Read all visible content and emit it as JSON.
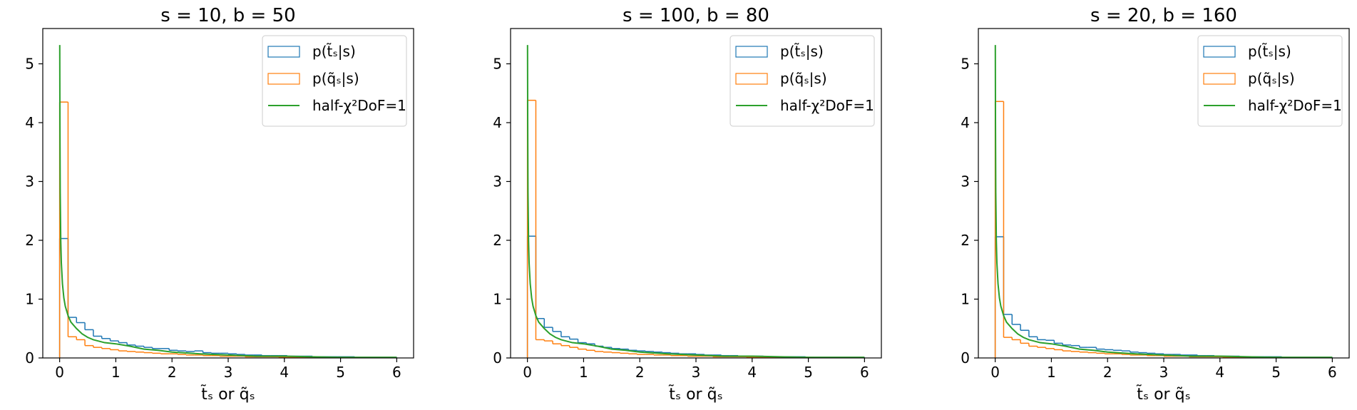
{
  "chart_data": [
    {
      "type": "histogram",
      "title": "s = 10, b = 50",
      "xlabel": "t̃ₛ or q̃ₛ",
      "ylabel": "",
      "xlim": [
        -0.3,
        6.3
      ],
      "ylim": [
        0,
        5.6
      ],
      "xticks": [
        0,
        1,
        2,
        3,
        4,
        5,
        6
      ],
      "yticks": [
        0,
        1,
        2,
        3,
        4,
        5
      ],
      "xtick_labels": [
        "0",
        "1",
        "2",
        "3",
        "4",
        "5",
        "6"
      ],
      "ytick_labels": [
        "0",
        "1",
        "2",
        "3",
        "4",
        "5"
      ],
      "legend_position": "upper right",
      "grid": false,
      "series": [
        {
          "name": "p(t̃ₛ|s)",
          "kind": "step-histogram",
          "color": "#1f77b4",
          "bin_edges": [
            0,
            0.15,
            0.3,
            0.45,
            0.6,
            0.75,
            0.9,
            1.05,
            1.2,
            1.35,
            1.5,
            1.65,
            1.8,
            1.95,
            2.1,
            2.25,
            2.4,
            2.55,
            2.7,
            2.85,
            3.0,
            3.15,
            3.3,
            3.45,
            3.6,
            3.75,
            3.9,
            4.05,
            4.2,
            4.35,
            4.5,
            4.65,
            4.8,
            4.95,
            5.1,
            5.25,
            5.4,
            5.55,
            5.7,
            5.85,
            6.0
          ],
          "values": [
            2.03,
            0.69,
            0.6,
            0.48,
            0.37,
            0.33,
            0.29,
            0.26,
            0.22,
            0.2,
            0.18,
            0.16,
            0.16,
            0.13,
            0.12,
            0.11,
            0.12,
            0.09,
            0.08,
            0.08,
            0.07,
            0.06,
            0.05,
            0.05,
            0.04,
            0.04,
            0.04,
            0.03,
            0.03,
            0.03,
            0.02,
            0.02,
            0.02,
            0.02,
            0.02,
            0.01,
            0.01,
            0.01,
            0.01,
            0.01
          ]
        },
        {
          "name": "p(q̃ₛ|s)",
          "kind": "step-histogram",
          "color": "#ff7f0e",
          "bin_edges": [
            0,
            0.15,
            0.3,
            0.45,
            0.6,
            0.75,
            0.9,
            1.05,
            1.2,
            1.35,
            1.5,
            1.65,
            1.8,
            1.95,
            2.1,
            2.25,
            2.4,
            2.55,
            2.7,
            2.85,
            3.0,
            3.15,
            3.3,
            3.45,
            3.6,
            3.75,
            3.9,
            4.05,
            4.2,
            4.35,
            4.5,
            4.65,
            4.8,
            4.95,
            5.1,
            5.25,
            5.4,
            5.55,
            5.7,
            5.85,
            6.0
          ],
          "values": [
            4.35,
            0.36,
            0.31,
            0.21,
            0.18,
            0.16,
            0.14,
            0.12,
            0.11,
            0.1,
            0.09,
            0.08,
            0.07,
            0.07,
            0.06,
            0.05,
            0.05,
            0.04,
            0.04,
            0.03,
            0.03,
            0.03,
            0.02,
            0.02,
            0.02,
            0.02,
            0.01,
            0.01,
            0.01,
            0.01,
            0.01,
            0.01,
            0.01,
            0.01,
            0.01,
            0.0,
            0.0,
            0.0,
            0.0,
            0.0
          ]
        },
        {
          "name": "half-χ²DoF=1",
          "kind": "line",
          "color": "#2ca02c",
          "x": [
            0.002,
            0.005,
            0.01,
            0.02,
            0.03,
            0.05,
            0.075,
            0.1,
            0.15,
            0.2,
            0.3,
            0.4,
            0.5,
            0.6,
            0.8,
            1.0,
            1.25,
            1.5,
            1.75,
            2.0,
            2.5,
            3.0,
            3.5,
            4.0,
            4.5,
            5.0,
            5.5,
            6.0
          ],
          "y": [
            5.32,
            4.0,
            2.82,
            1.99,
            1.62,
            1.26,
            1.02,
            0.88,
            0.72,
            0.61,
            0.5,
            0.41,
            0.35,
            0.31,
            0.26,
            0.24,
            0.2,
            0.15,
            0.13,
            0.1,
            0.07,
            0.05,
            0.03,
            0.03,
            0.02,
            0.01,
            0.01,
            0.01
          ]
        }
      ]
    },
    {
      "type": "histogram",
      "title": "s = 100, b = 80",
      "xlabel": "t̃ₛ or q̃ₛ",
      "ylabel": "",
      "xlim": [
        -0.3,
        6.3
      ],
      "ylim": [
        0,
        5.6
      ],
      "xticks": [
        0,
        1,
        2,
        3,
        4,
        5,
        6
      ],
      "yticks": [
        0,
        1,
        2,
        3,
        4,
        5
      ],
      "xtick_labels": [
        "0",
        "1",
        "2",
        "3",
        "4",
        "5",
        "6"
      ],
      "ytick_labels": [
        "0",
        "1",
        "2",
        "3",
        "4",
        "5"
      ],
      "legend_position": "upper right",
      "grid": false,
      "series": [
        {
          "name": "p(t̃ₛ|s)",
          "kind": "step-histogram",
          "color": "#1f77b4",
          "bin_edges": [
            0,
            0.15,
            0.3,
            0.45,
            0.6,
            0.75,
            0.9,
            1.05,
            1.2,
            1.35,
            1.5,
            1.65,
            1.8,
            1.95,
            2.1,
            2.25,
            2.4,
            2.55,
            2.7,
            2.85,
            3.0,
            3.15,
            3.3,
            3.45,
            3.6,
            3.75,
            3.9,
            4.05,
            4.2,
            4.35,
            4.5,
            4.65,
            4.8,
            4.95,
            5.1,
            5.25,
            5.4,
            5.55,
            5.7,
            5.85,
            6.0
          ],
          "values": [
            2.07,
            0.67,
            0.52,
            0.45,
            0.36,
            0.32,
            0.26,
            0.24,
            0.2,
            0.18,
            0.16,
            0.15,
            0.13,
            0.12,
            0.11,
            0.1,
            0.09,
            0.08,
            0.07,
            0.07,
            0.06,
            0.05,
            0.05,
            0.04,
            0.04,
            0.03,
            0.03,
            0.03,
            0.02,
            0.02,
            0.02,
            0.02,
            0.02,
            0.01,
            0.01,
            0.01,
            0.01,
            0.01,
            0.01,
            0.01
          ]
        },
        {
          "name": "p(q̃ₛ|s)",
          "kind": "step-histogram",
          "color": "#ff7f0e",
          "bin_edges": [
            0,
            0.15,
            0.3,
            0.45,
            0.6,
            0.75,
            0.9,
            1.05,
            1.2,
            1.35,
            1.5,
            1.65,
            1.8,
            1.95,
            2.1,
            2.25,
            2.4,
            2.55,
            2.7,
            2.85,
            3.0,
            3.15,
            3.3,
            3.45,
            3.6,
            3.75,
            3.9,
            4.05,
            4.2,
            4.35,
            4.5,
            4.65,
            4.8,
            4.95,
            5.1,
            5.25,
            5.4,
            5.55,
            5.7,
            5.85,
            6.0
          ],
          "values": [
            4.38,
            0.31,
            0.29,
            0.24,
            0.21,
            0.18,
            0.15,
            0.13,
            0.11,
            0.1,
            0.09,
            0.08,
            0.07,
            0.06,
            0.06,
            0.05,
            0.05,
            0.04,
            0.04,
            0.03,
            0.03,
            0.03,
            0.02,
            0.02,
            0.02,
            0.02,
            0.01,
            0.01,
            0.01,
            0.01,
            0.01,
            0.01,
            0.01,
            0.01,
            0.0,
            0.0,
            0.0,
            0.0,
            0.0,
            0.0
          ]
        },
        {
          "name": "half-χ²DoF=1",
          "kind": "line",
          "color": "#2ca02c",
          "x": [
            0.002,
            0.005,
            0.01,
            0.02,
            0.03,
            0.05,
            0.075,
            0.1,
            0.15,
            0.2,
            0.3,
            0.4,
            0.5,
            0.6,
            0.8,
            1.0,
            1.25,
            1.5,
            1.75,
            2.0,
            2.5,
            3.0,
            3.5,
            4.0,
            4.5,
            5.0,
            5.5,
            6.0
          ],
          "y": [
            5.32,
            4.0,
            2.82,
            1.99,
            1.62,
            1.26,
            1.02,
            0.88,
            0.72,
            0.61,
            0.5,
            0.41,
            0.35,
            0.31,
            0.26,
            0.24,
            0.2,
            0.15,
            0.13,
            0.1,
            0.07,
            0.05,
            0.03,
            0.03,
            0.02,
            0.01,
            0.01,
            0.01
          ]
        }
      ]
    },
    {
      "type": "histogram",
      "title": "s = 20, b = 160",
      "xlabel": "t̃ₛ or q̃ₛ",
      "ylabel": "",
      "xlim": [
        -0.3,
        6.3
      ],
      "ylim": [
        0,
        5.6
      ],
      "xticks": [
        0,
        1,
        2,
        3,
        4,
        5,
        6
      ],
      "yticks": [
        0,
        1,
        2,
        3,
        4,
        5
      ],
      "xtick_labels": [
        "0",
        "1",
        "2",
        "3",
        "4",
        "5",
        "6"
      ],
      "ytick_labels": [
        "0",
        "1",
        "2",
        "3",
        "4",
        "5"
      ],
      "legend_position": "upper right",
      "grid": false,
      "series": [
        {
          "name": "p(t̃ₛ|s)",
          "kind": "step-histogram",
          "color": "#1f77b4",
          "bin_edges": [
            0,
            0.15,
            0.3,
            0.45,
            0.6,
            0.75,
            0.9,
            1.05,
            1.2,
            1.35,
            1.5,
            1.65,
            1.8,
            1.95,
            2.1,
            2.25,
            2.4,
            2.55,
            2.7,
            2.85,
            3.0,
            3.15,
            3.3,
            3.45,
            3.6,
            3.75,
            3.9,
            4.05,
            4.2,
            4.35,
            4.5,
            4.65,
            4.8,
            4.95,
            5.1,
            5.25,
            5.4,
            5.55,
            5.7,
            5.85,
            6.0
          ],
          "values": [
            2.06,
            0.74,
            0.57,
            0.47,
            0.36,
            0.31,
            0.3,
            0.25,
            0.22,
            0.21,
            0.18,
            0.18,
            0.15,
            0.14,
            0.13,
            0.12,
            0.1,
            0.09,
            0.08,
            0.07,
            0.06,
            0.06,
            0.05,
            0.05,
            0.04,
            0.04,
            0.03,
            0.03,
            0.03,
            0.02,
            0.02,
            0.02,
            0.02,
            0.02,
            0.01,
            0.01,
            0.01,
            0.01,
            0.01,
            0.01
          ]
        },
        {
          "name": "p(q̃ₛ|s)",
          "kind": "step-histogram",
          "color": "#ff7f0e",
          "bin_edges": [
            0,
            0.15,
            0.3,
            0.45,
            0.6,
            0.75,
            0.9,
            1.05,
            1.2,
            1.35,
            1.5,
            1.65,
            1.8,
            1.95,
            2.1,
            2.25,
            2.4,
            2.55,
            2.7,
            2.85,
            3.0,
            3.15,
            3.3,
            3.45,
            3.6,
            3.75,
            3.9,
            4.05,
            4.2,
            4.35,
            4.5,
            4.65,
            4.8,
            4.95,
            5.1,
            5.25,
            5.4,
            5.55,
            5.7,
            5.85,
            6.0
          ],
          "values": [
            4.36,
            0.35,
            0.31,
            0.25,
            0.2,
            0.18,
            0.16,
            0.14,
            0.12,
            0.11,
            0.1,
            0.09,
            0.08,
            0.07,
            0.07,
            0.06,
            0.05,
            0.05,
            0.04,
            0.04,
            0.03,
            0.03,
            0.03,
            0.02,
            0.02,
            0.02,
            0.02,
            0.01,
            0.01,
            0.01,
            0.01,
            0.01,
            0.01,
            0.01,
            0.01,
            0.0,
            0.0,
            0.0,
            0.0,
            0.0
          ]
        },
        {
          "name": "half-χ²DoF=1",
          "kind": "line",
          "color": "#2ca02c",
          "x": [
            0.002,
            0.005,
            0.01,
            0.02,
            0.03,
            0.05,
            0.075,
            0.1,
            0.15,
            0.2,
            0.3,
            0.4,
            0.5,
            0.6,
            0.8,
            1.0,
            1.25,
            1.5,
            1.75,
            2.0,
            2.5,
            3.0,
            3.5,
            4.0,
            4.5,
            5.0,
            5.5,
            6.0
          ],
          "y": [
            5.32,
            4.0,
            2.82,
            1.99,
            1.62,
            1.26,
            1.02,
            0.88,
            0.72,
            0.61,
            0.5,
            0.41,
            0.35,
            0.31,
            0.26,
            0.24,
            0.2,
            0.15,
            0.13,
            0.1,
            0.07,
            0.05,
            0.03,
            0.03,
            0.02,
            0.01,
            0.01,
            0.01
          ]
        }
      ]
    }
  ]
}
